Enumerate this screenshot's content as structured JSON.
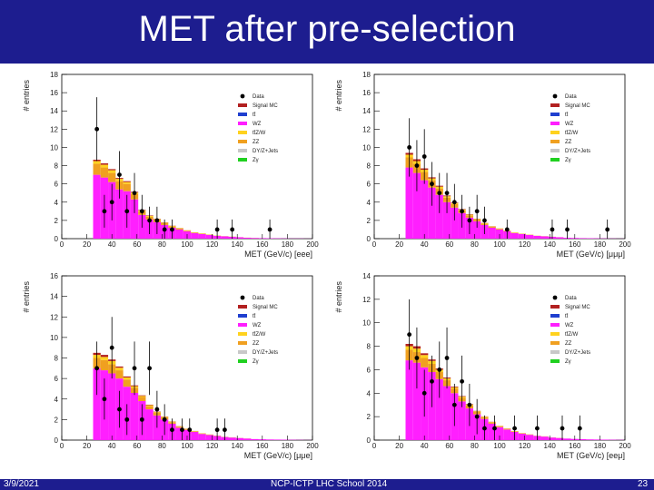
{
  "slide": {
    "title": "MET after pre-selection",
    "date": "3/9/2021",
    "event": "NCP-ICTP LHC School 2014",
    "page": "23",
    "colors": {
      "bar": "#1d1d8f",
      "text": "#ffffff"
    }
  },
  "legend": {
    "entries": [
      {
        "label": "Data",
        "type": "marker",
        "color": "#000000"
      },
      {
        "label": "Signal MC",
        "type": "box",
        "color": "#b22020"
      },
      {
        "label": "tt̄",
        "type": "box",
        "color": "#1f3fcf"
      },
      {
        "label": "WZ",
        "type": "box",
        "color": "#ff1fff"
      },
      {
        "label": "tt̄Z/W",
        "type": "box",
        "color": "#ffd21e"
      },
      {
        "label": "ZZ",
        "type": "box",
        "color": "#f0a020"
      },
      {
        "label": "DY/Z+Jets",
        "type": "box",
        "color": "#c8c8c8"
      },
      {
        "label": "Zγ",
        "type": "box",
        "color": "#20d020"
      }
    ]
  },
  "chart_data": [
    {
      "type": "bar",
      "id": "eee",
      "ylabel": "# entries",
      "xlabel": "MET (GeV/c) [eee]",
      "xlim": [
        0,
        200
      ],
      "ylim": [
        0,
        18
      ],
      "xticks": [
        0,
        20,
        40,
        60,
        80,
        100,
        120,
        140,
        160,
        180,
        200
      ],
      "yticks": [
        0,
        2,
        4,
        6,
        8,
        10,
        12,
        14,
        16,
        18
      ],
      "bin_width": 6,
      "bin_start": 25,
      "series": [
        {
          "name": "WZ",
          "values": [
            7.0,
            6.7,
            6.2,
            5.4,
            5.2,
            4.3,
            2.6,
            2.1,
            1.8,
            1.5,
            1.2,
            1.0,
            0.8,
            0.6,
            0.5,
            0.4,
            0.3,
            0.25,
            0.2,
            0.15,
            0.1,
            0.08,
            0.06,
            0.05,
            0.04,
            0.03,
            0.02,
            0.02,
            0.01
          ]
        },
        {
          "name": "ZZ",
          "values": [
            1.2,
            1.1,
            1.0,
            0.9,
            0.8,
            0.6,
            0.4,
            0.3,
            0.25,
            0.2,
            0.15,
            0.1,
            0.08,
            0.06,
            0.05,
            0.04,
            0.03,
            0.02,
            0.02,
            0.01,
            0.01,
            0.01,
            0,
            0,
            0,
            0,
            0,
            0,
            0
          ]
        },
        {
          "name": "tt̄Z/W",
          "values": [
            0.3,
            0.3,
            0.3,
            0.25,
            0.2,
            0.15,
            0.1,
            0.1,
            0.08,
            0.06,
            0.05,
            0.04,
            0.03,
            0.02,
            0.02,
            0.01,
            0.01,
            0,
            0,
            0,
            0,
            0,
            0,
            0,
            0,
            0,
            0,
            0,
            0
          ]
        },
        {
          "name": "Signal MC",
          "values": [
            0.15,
            0.15,
            0.12,
            0.1,
            0.1,
            0.08,
            0.06,
            0.05,
            0.04,
            0.03,
            0.02,
            0.02,
            0.01,
            0.01,
            0,
            0,
            0,
            0,
            0,
            0,
            0,
            0,
            0,
            0,
            0,
            0,
            0,
            0,
            0
          ]
        }
      ],
      "data_points": [
        {
          "x": 28,
          "y": 12,
          "err": 3.5
        },
        {
          "x": 34,
          "y": 3,
          "err": 1.8
        },
        {
          "x": 40,
          "y": 4,
          "err": 2.0
        },
        {
          "x": 46,
          "y": 7,
          "err": 2.6
        },
        {
          "x": 52,
          "y": 3,
          "err": 1.8
        },
        {
          "x": 58,
          "y": 5,
          "err": 2.2
        },
        {
          "x": 64,
          "y": 3,
          "err": 1.8
        },
        {
          "x": 70,
          "y": 2,
          "err": 1.5
        },
        {
          "x": 76,
          "y": 2,
          "err": 1.5
        },
        {
          "x": 82,
          "y": 1,
          "err": 1.1
        },
        {
          "x": 88,
          "y": 1,
          "err": 1.1
        },
        {
          "x": 124,
          "y": 1,
          "err": 1.1
        },
        {
          "x": 136,
          "y": 1,
          "err": 1.1
        },
        {
          "x": 166,
          "y": 1,
          "err": 1.1
        }
      ]
    },
    {
      "type": "bar",
      "id": "μμμ",
      "ylabel": "# entries",
      "xlabel": "MET (GeV/c) [μμμ]",
      "xlim": [
        0,
        200
      ],
      "ylim": [
        0,
        18
      ],
      "xticks": [
        0,
        20,
        40,
        60,
        80,
        100,
        120,
        140,
        160,
        180,
        200
      ],
      "yticks": [
        0,
        2,
        4,
        6,
        8,
        10,
        12,
        14,
        16,
        18
      ],
      "bin_width": 6,
      "bin_start": 25,
      "series": [
        {
          "name": "WZ",
          "values": [
            7.8,
            7.2,
            6.4,
            5.6,
            4.8,
            4.0,
            3.4,
            2.8,
            2.3,
            1.9,
            1.5,
            1.2,
            1.0,
            0.8,
            0.6,
            0.5,
            0.4,
            0.3,
            0.25,
            0.2,
            0.15,
            0.1,
            0.08,
            0.06,
            0.05,
            0.04,
            0.03,
            0.02,
            0.01
          ]
        },
        {
          "name": "ZZ",
          "values": [
            1.1,
            1.0,
            0.9,
            0.8,
            0.7,
            0.5,
            0.4,
            0.3,
            0.25,
            0.2,
            0.15,
            0.1,
            0.08,
            0.06,
            0.05,
            0.04,
            0.03,
            0.02,
            0.02,
            0.01,
            0.01,
            0,
            0,
            0,
            0,
            0,
            0,
            0,
            0
          ]
        },
        {
          "name": "tt̄Z/W",
          "values": [
            0.3,
            0.3,
            0.25,
            0.2,
            0.2,
            0.15,
            0.1,
            0.1,
            0.08,
            0.06,
            0.05,
            0.04,
            0.03,
            0.02,
            0.02,
            0.01,
            0.01,
            0,
            0,
            0,
            0,
            0,
            0,
            0,
            0,
            0,
            0,
            0,
            0
          ]
        },
        {
          "name": "Signal MC",
          "values": [
            0.2,
            0.2,
            0.15,
            0.12,
            0.1,
            0.08,
            0.06,
            0.05,
            0.04,
            0.03,
            0.02,
            0.02,
            0.01,
            0.01,
            0,
            0,
            0,
            0,
            0,
            0,
            0,
            0,
            0,
            0,
            0,
            0,
            0,
            0,
            0
          ]
        }
      ],
      "data_points": [
        {
          "x": 28,
          "y": 10,
          "err": 3.2
        },
        {
          "x": 34,
          "y": 8,
          "err": 2.8
        },
        {
          "x": 40,
          "y": 9,
          "err": 3.0
        },
        {
          "x": 46,
          "y": 6,
          "err": 2.4
        },
        {
          "x": 52,
          "y": 5,
          "err": 2.2
        },
        {
          "x": 58,
          "y": 5,
          "err": 2.2
        },
        {
          "x": 64,
          "y": 4,
          "err": 2.0
        },
        {
          "x": 70,
          "y": 3,
          "err": 1.8
        },
        {
          "x": 76,
          "y": 2,
          "err": 1.5
        },
        {
          "x": 82,
          "y": 3,
          "err": 1.8
        },
        {
          "x": 88,
          "y": 2,
          "err": 1.5
        },
        {
          "x": 106,
          "y": 1,
          "err": 1.1
        },
        {
          "x": 142,
          "y": 1,
          "err": 1.1
        },
        {
          "x": 154,
          "y": 1,
          "err": 1.1
        },
        {
          "x": 186,
          "y": 1,
          "err": 1.1
        }
      ]
    },
    {
      "type": "bar",
      "id": "μμe",
      "ylabel": "# entries",
      "xlabel": "MET (GeV/c) [μμe]",
      "xlim": [
        0,
        200
      ],
      "ylim": [
        0,
        16
      ],
      "xticks": [
        0,
        20,
        40,
        60,
        80,
        100,
        120,
        140,
        160,
        180,
        200
      ],
      "yticks": [
        0,
        2,
        4,
        6,
        8,
        10,
        12,
        14,
        16
      ],
      "bin_width": 6,
      "bin_start": 25,
      "series": [
        {
          "name": "WZ",
          "values": [
            7.0,
            6.8,
            6.5,
            6.0,
            5.2,
            4.6,
            3.8,
            3.0,
            2.4,
            2.0,
            1.6,
            1.2,
            1.0,
            0.8,
            0.6,
            0.5,
            0.4,
            0.3,
            0.25,
            0.2,
            0.15,
            0.1,
            0.08,
            0.06,
            0.05,
            0.04,
            0.03,
            0.02,
            0.01
          ]
        },
        {
          "name": "ZZ",
          "values": [
            1.0,
            1.0,
            0.9,
            0.8,
            0.7,
            0.5,
            0.4,
            0.3,
            0.25,
            0.2,
            0.15,
            0.1,
            0.08,
            0.06,
            0.05,
            0.04,
            0.03,
            0.02,
            0.02,
            0.01,
            0.01,
            0,
            0,
            0,
            0,
            0,
            0,
            0,
            0
          ]
        },
        {
          "name": "tt̄Z/W",
          "values": [
            0.3,
            0.3,
            0.3,
            0.25,
            0.2,
            0.15,
            0.1,
            0.1,
            0.08,
            0.06,
            0.05,
            0.04,
            0.03,
            0.02,
            0.02,
            0.01,
            0.01,
            0,
            0,
            0,
            0,
            0,
            0,
            0,
            0,
            0,
            0,
            0,
            0
          ]
        },
        {
          "name": "Signal MC",
          "values": [
            0.2,
            0.2,
            0.15,
            0.12,
            0.1,
            0.08,
            0.06,
            0.05,
            0.04,
            0.03,
            0.02,
            0.02,
            0.01,
            0.01,
            0,
            0,
            0,
            0,
            0,
            0,
            0,
            0,
            0,
            0,
            0,
            0,
            0,
            0,
            0
          ]
        }
      ],
      "data_points": [
        {
          "x": 28,
          "y": 7,
          "err": 2.6
        },
        {
          "x": 34,
          "y": 4,
          "err": 2.0
        },
        {
          "x": 40,
          "y": 9,
          "err": 3.0
        },
        {
          "x": 46,
          "y": 3,
          "err": 1.8
        },
        {
          "x": 52,
          "y": 2,
          "err": 1.5
        },
        {
          "x": 58,
          "y": 7,
          "err": 2.6
        },
        {
          "x": 64,
          "y": 2,
          "err": 1.5
        },
        {
          "x": 70,
          "y": 7,
          "err": 2.6
        },
        {
          "x": 76,
          "y": 3,
          "err": 1.8
        },
        {
          "x": 82,
          "y": 2,
          "err": 1.5
        },
        {
          "x": 88,
          "y": 1,
          "err": 1.1
        },
        {
          "x": 96,
          "y": 1,
          "err": 1.1
        },
        {
          "x": 102,
          "y": 1,
          "err": 1.1
        },
        {
          "x": 124,
          "y": 1,
          "err": 1.1
        },
        {
          "x": 130,
          "y": 1,
          "err": 1.1
        }
      ]
    },
    {
      "type": "bar",
      "id": "eeμ",
      "ylabel": "# entries",
      "xlabel": "MET (GeV/c) [eeμ]",
      "xlim": [
        0,
        200
      ],
      "ylim": [
        0,
        14
      ],
      "xticks": [
        0,
        20,
        40,
        60,
        80,
        100,
        120,
        140,
        160,
        180,
        200
      ],
      "yticks": [
        0,
        2,
        4,
        6,
        8,
        10,
        12,
        14
      ],
      "bin_width": 6,
      "bin_start": 25,
      "series": [
        {
          "name": "WZ",
          "values": [
            6.8,
            6.6,
            6.2,
            5.8,
            5.2,
            4.6,
            4.0,
            3.3,
            2.7,
            2.2,
            1.8,
            1.4,
            1.1,
            0.9,
            0.7,
            0.55,
            0.45,
            0.35,
            0.3,
            0.22,
            0.18,
            0.13,
            0.1,
            0.08,
            0.06,
            0.05,
            0.04,
            0.03,
            0.02
          ]
        },
        {
          "name": "ZZ",
          "values": [
            0.9,
            0.9,
            0.8,
            0.7,
            0.6,
            0.5,
            0.4,
            0.3,
            0.25,
            0.2,
            0.15,
            0.1,
            0.08,
            0.06,
            0.05,
            0.04,
            0.03,
            0.02,
            0.02,
            0.01,
            0.01,
            0,
            0,
            0,
            0,
            0,
            0,
            0,
            0
          ]
        },
        {
          "name": "tt̄Z/W",
          "values": [
            0.3,
            0.3,
            0.25,
            0.25,
            0.2,
            0.15,
            0.1,
            0.1,
            0.08,
            0.06,
            0.05,
            0.04,
            0.03,
            0.02,
            0.02,
            0.01,
            0.01,
            0,
            0,
            0,
            0,
            0,
            0,
            0,
            0,
            0,
            0,
            0,
            0
          ]
        },
        {
          "name": "Signal MC",
          "values": [
            0.2,
            0.2,
            0.15,
            0.12,
            0.1,
            0.08,
            0.06,
            0.05,
            0.04,
            0.03,
            0.02,
            0.02,
            0.01,
            0.01,
            0,
            0,
            0,
            0,
            0,
            0,
            0,
            0,
            0,
            0,
            0,
            0,
            0,
            0,
            0
          ]
        }
      ],
      "data_points": [
        {
          "x": 28,
          "y": 9,
          "err": 3.0
        },
        {
          "x": 34,
          "y": 7,
          "err": 2.6
        },
        {
          "x": 40,
          "y": 4,
          "err": 2.0
        },
        {
          "x": 46,
          "y": 5,
          "err": 2.2
        },
        {
          "x": 52,
          "y": 6,
          "err": 2.4
        },
        {
          "x": 58,
          "y": 7,
          "err": 2.6
        },
        {
          "x": 64,
          "y": 3,
          "err": 1.8
        },
        {
          "x": 70,
          "y": 5,
          "err": 2.2
        },
        {
          "x": 76,
          "y": 3,
          "err": 1.8
        },
        {
          "x": 82,
          "y": 2,
          "err": 1.5
        },
        {
          "x": 88,
          "y": 1,
          "err": 1.1
        },
        {
          "x": 96,
          "y": 1,
          "err": 1.1
        },
        {
          "x": 112,
          "y": 1,
          "err": 1.1
        },
        {
          "x": 130,
          "y": 1,
          "err": 1.1
        },
        {
          "x": 150,
          "y": 1,
          "err": 1.1
        },
        {
          "x": 164,
          "y": 1,
          "err": 1.1
        }
      ]
    }
  ]
}
